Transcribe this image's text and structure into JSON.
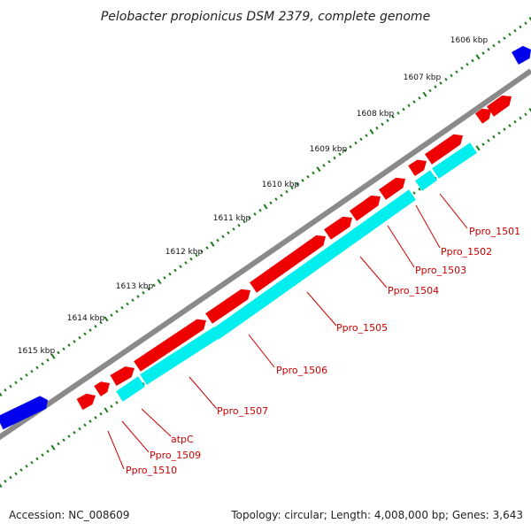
{
  "title": "Pelobacter propionicus DSM 2379, complete genome",
  "accession": "Accession: NC_008609",
  "summary": "Topology: circular; Length: 4,008,000 bp; Genes: 3,643",
  "colors": {
    "backbone": "#7a7a7a",
    "forward_gene": "#ee0000",
    "cds_block": "#00eeee",
    "context_gene": "#0000ee",
    "tick_dot": "#1a7a1a",
    "label": "#cc0000"
  },
  "ticks": [
    "1606 kbp",
    "1607 kbp",
    "1608 kbp",
    "1609 kbp",
    "1610 kbp",
    "1611 kbp",
    "1612 kbp",
    "1613 kbp",
    "1614 kbp",
    "1615 kbp"
  ],
  "genes": [
    "Ppro_1501",
    "Ppro_1502",
    "Ppro_1503",
    "Ppro_1504",
    "Ppro_1505",
    "Ppro_1506",
    "Ppro_1507",
    "atpC",
    "Ppro_1509",
    "Ppro_1510"
  ]
}
